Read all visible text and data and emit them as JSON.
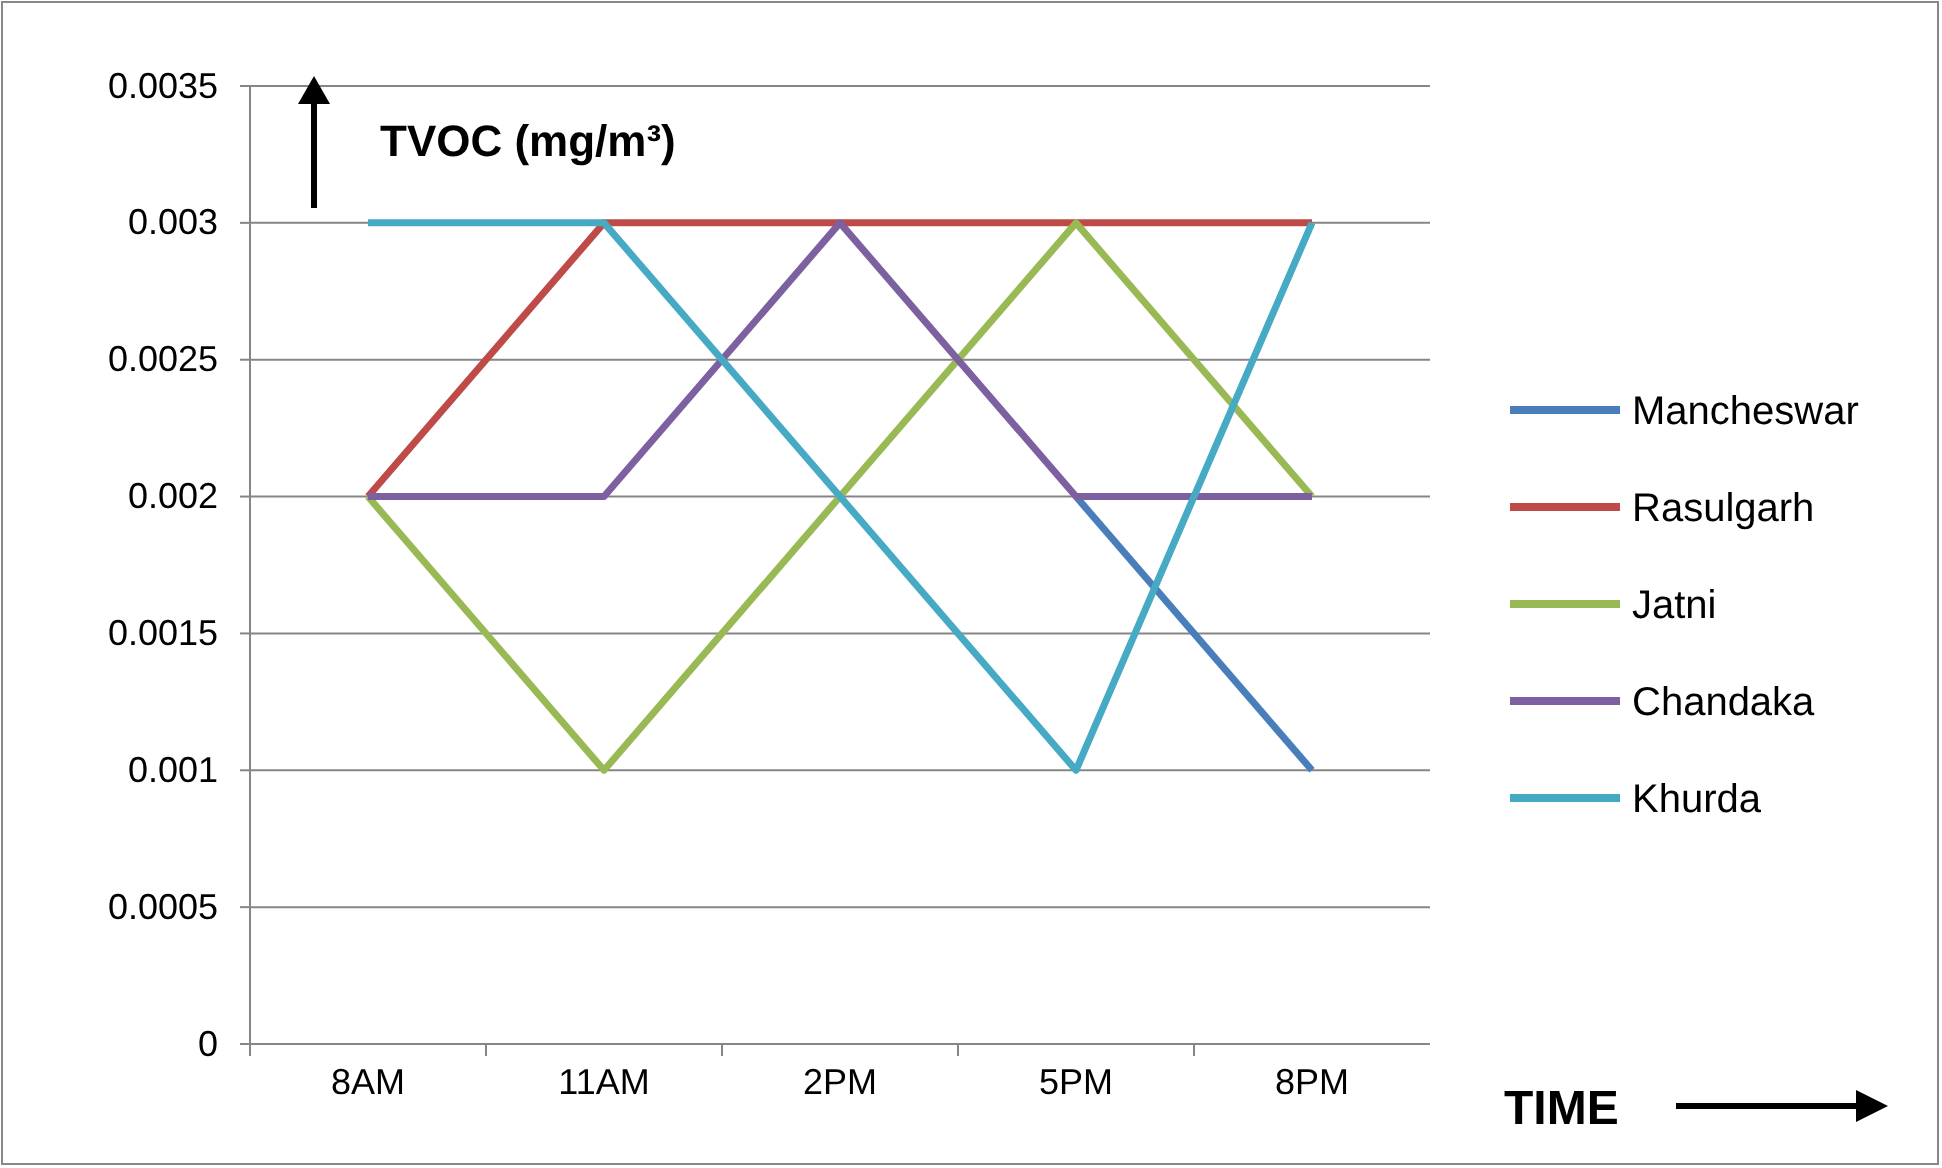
{
  "chart_data": {
    "type": "line",
    "ylabel": "TVOC (mg/m³)",
    "xlabel": "TIME",
    "categories": [
      "8AM",
      "11AM",
      "2PM",
      "5PM",
      "8PM"
    ],
    "series": [
      {
        "name": "Mancheswar",
        "color": "#4a7ebb",
        "values": [
          null,
          null,
          null,
          0.002,
          0.001
        ]
      },
      {
        "name": "Rasulgarh",
        "color": "#be4b48",
        "values": [
          0.002,
          0.003,
          0.003,
          0.003,
          0.003
        ]
      },
      {
        "name": "Jatni",
        "color": "#98b954",
        "values": [
          0.002,
          0.001,
          0.002,
          0.003,
          0.002
        ]
      },
      {
        "name": "Chandaka",
        "color": "#7d60a0",
        "values": [
          0.002,
          0.002,
          0.003,
          0.002,
          0.002
        ]
      },
      {
        "name": "Khurda",
        "color": "#46aac5",
        "values": [
          0.003,
          0.003,
          0.002,
          0.001,
          0.003
        ]
      }
    ],
    "ylim": [
      0,
      0.0035
    ],
    "yticks": [
      0,
      0.0005,
      0.001,
      0.0015,
      0.002,
      0.0025,
      0.003,
      0.0035
    ],
    "grid": "y",
    "legend": "right",
    "marker": "none",
    "line_style": "solid"
  }
}
